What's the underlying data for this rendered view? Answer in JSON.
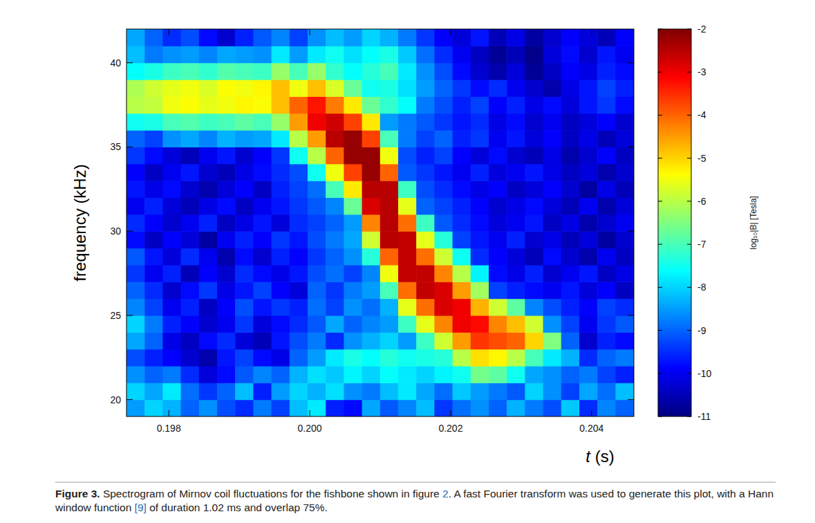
{
  "chart_data": {
    "type": "heatmap",
    "xlabel": "t (s)",
    "ylabel": "frequency (kHz)",
    "xlim": [
      0.1974,
      0.2046
    ],
    "ylim": [
      19,
      42
    ],
    "xticks": [
      0.198,
      {
        "value": 0.2,
        "label": "0.200"
      },
      0.202,
      0.204
    ],
    "yticks": [
      20,
      25,
      30,
      35,
      40
    ],
    "x_edges": [
      0.1974,
      0.197657,
      0.197914,
      0.198171,
      0.198428,
      0.198685,
      0.198942,
      0.199199,
      0.199456,
      0.199713,
      0.19997,
      0.200227,
      0.200484,
      0.200741,
      0.200998,
      0.201255,
      0.201512,
      0.201769,
      0.202026,
      0.202283,
      0.20254,
      0.202797,
      0.203054,
      0.203311,
      0.203568,
      0.203825,
      0.204082,
      0.204339,
      0.204596
    ],
    "y_edges": [
      19,
      20,
      21,
      22,
      23,
      24,
      25,
      26,
      27,
      28,
      29,
      30,
      31,
      32,
      33,
      34,
      35,
      36,
      37,
      38,
      39,
      40,
      41,
      42
    ],
    "z": [
      [
        -8.5,
        -8.0,
        -8.3,
        -9.0,
        -8.6,
        -9.2,
        -9.5,
        -8.8,
        -9.3,
        -8.2,
        -7.8,
        -9.6,
        -9.8,
        -8.4,
        -9.1,
        -8.7,
        -8.2,
        -9.4,
        -8.9,
        -8.6,
        -9.0,
        -8.3,
        -8.8,
        -9.2,
        -8.1,
        -9.5,
        -8.7,
        -9.0
      ],
      [
        -8.0,
        -8.4,
        -7.8,
        -8.9,
        -9.4,
        -9.0,
        -8.2,
        -9.6,
        -8.5,
        -8.0,
        -8.3,
        -7.9,
        -8.6,
        -8.8,
        -8.2,
        -7.8,
        -8.4,
        -8.9,
        -8.1,
        -8.5,
        -8.8,
        -9.1,
        -8.0,
        -8.6,
        -9.3,
        -8.4,
        -8.9,
        -8.2
      ],
      [
        -8.6,
        -9.0,
        -8.8,
        -9.5,
        -10.2,
        -9.8,
        -9.1,
        -8.7,
        -9.0,
        -8.3,
        -7.9,
        -8.1,
        -7.7,
        -8.0,
        -7.6,
        -7.8,
        -8.0,
        -7.7,
        -7.5,
        -6.6,
        -6.8,
        -7.5,
        -8.4,
        -8.6,
        -9.0,
        -8.8,
        -9.3,
        -9.6
      ],
      [
        -9.2,
        -9.6,
        -9.9,
        -10.3,
        -10.6,
        -9.7,
        -9.3,
        -9.8,
        -10.1,
        -9.0,
        -8.5,
        -7.8,
        -7.4,
        -7.6,
        -7.3,
        -7.5,
        -7.4,
        -7.3,
        -6.0,
        -5.1,
        -5.3,
        -6.0,
        -7.0,
        -7.8,
        -8.3,
        -9.5,
        -9.0,
        -8.8
      ],
      [
        -8.4,
        -9.0,
        -10.1,
        -10.4,
        -9.8,
        -9.5,
        -10.2,
        -10.5,
        -9.7,
        -9.2,
        -8.8,
        -9.5,
        -8.6,
        -8.3,
        -8.0,
        -8.5,
        -7.1,
        -5.8,
        -4.5,
        -3.6,
        -3.8,
        -4.0,
        -5.0,
        -6.5,
        -9.0,
        -10.3,
        -9.6,
        -9.8
      ],
      [
        -8.0,
        -8.8,
        -9.6,
        -9.9,
        -10.3,
        -10.0,
        -9.4,
        -10.2,
        -9.8,
        -9.5,
        -9.1,
        -8.4,
        -9.0,
        -8.7,
        -8.5,
        -7.1,
        -5.6,
        -4.3,
        -3.0,
        -3.2,
        -4.3,
        -4.8,
        -5.8,
        -8.6,
        -9.3,
        -10.0,
        -9.4,
        -9.1
      ],
      [
        -8.7,
        -9.3,
        -10.0,
        -9.6,
        -10.4,
        -9.9,
        -9.2,
        -9.7,
        -9.4,
        -9.6,
        -8.9,
        -9.3,
        -8.6,
        -8.9,
        -8.3,
        -5.6,
        -4.1,
        -2.8,
        -3.0,
        -4.7,
        -5.8,
        -6.8,
        -8.7,
        -9.2,
        -9.6,
        -9.9,
        -9.3,
        -9.5
      ],
      [
        -9.0,
        -9.5,
        -10.3,
        -9.8,
        -9.4,
        -10.1,
        -9.7,
        -9.3,
        -9.9,
        -10.2,
        -9.0,
        -9.4,
        -8.8,
        -8.5,
        -7.0,
        -4.1,
        -2.6,
        -2.8,
        -4.5,
        -6.2,
        -9.3,
        -9.6,
        -9.8,
        -10.0,
        -9.7,
        -10.2,
        -9.9,
        -10.4
      ],
      [
        -9.4,
        -10.0,
        -9.6,
        -10.5,
        -9.9,
        -10.3,
        -9.5,
        -9.8,
        -10.1,
        -9.7,
        -9.2,
        -8.9,
        -9.3,
        -8.7,
        -5.5,
        -2.6,
        -2.6,
        -4.3,
        -6.0,
        -7.7,
        -9.8,
        -10.1,
        -9.6,
        -10.3,
        -10.0,
        -9.7,
        -10.4,
        -10.1
      ],
      [
        -9.1,
        -9.7,
        -10.2,
        -9.5,
        -10.0,
        -10.6,
        -9.8,
        -10.3,
        -9.6,
        -9.9,
        -9.4,
        -9.0,
        -8.6,
        -7.3,
        -4.0,
        -2.6,
        -4.1,
        -5.8,
        -7.5,
        -9.5,
        -9.9,
        -10.2,
        -10.5,
        -9.8,
        -10.3,
        -10.6,
        -10.0,
        -10.4
      ],
      [
        -9.8,
        -10.4,
        -9.9,
        -10.2,
        -10.7,
        -10.0,
        -9.6,
        -9.9,
        -9.4,
        -9.7,
        -9.2,
        -8.8,
        -8.4,
        -5.8,
        -2.5,
        -2.6,
        -5.6,
        -7.3,
        -9.3,
        -9.7,
        -10.0,
        -9.6,
        -10.3,
        -10.1,
        -10.5,
        -10.2,
        -10.7,
        -10.3
      ],
      [
        -9.5,
        -9.9,
        -10.3,
        -10.0,
        -9.6,
        -10.4,
        -10.1,
        -9.7,
        -10.2,
        -9.5,
        -9.3,
        -9.0,
        -8.5,
        -4.3,
        -2.5,
        -4.1,
        -7.1,
        -9.1,
        -9.5,
        -9.8,
        -10.2,
        -10.0,
        -9.7,
        -10.4,
        -10.1,
        -10.6,
        -10.3,
        -10.0
      ],
      [
        -10.0,
        -9.6,
        -10.2,
        -10.5,
        -10.1,
        -9.8,
        -10.4,
        -10.0,
        -9.7,
        -9.4,
        -9.1,
        -8.7,
        -6.7,
        -2.8,
        -2.5,
        -5.6,
        -9.0,
        -9.3,
        -9.6,
        -9.9,
        -10.3,
        -10.1,
        -9.8,
        -10.2,
        -10.5,
        -10.0,
        -10.6,
        -10.2
      ],
      [
        -9.7,
        -10.1,
        -9.8,
        -10.3,
        -10.6,
        -10.2,
        -9.9,
        -10.4,
        -9.6,
        -9.3,
        -8.9,
        -7.0,
        -5.2,
        -2.5,
        -2.5,
        -7.1,
        -9.2,
        -9.5,
        -9.8,
        -10.1,
        -9.9,
        -10.4,
        -10.2,
        -9.9,
        -10.3,
        -10.7,
        -10.1,
        -10.5
      ],
      [
        -9.9,
        -10.4,
        -10.0,
        -9.7,
        -10.3,
        -10.5,
        -10.1,
        -9.8,
        -9.5,
        -9.2,
        -7.5,
        -5.5,
        -3.7,
        -2.2,
        -4.0,
        -9.1,
        -9.4,
        -9.7,
        -10.0,
        -9.6,
        -10.2,
        -10.0,
        -9.7,
        -10.1,
        -10.4,
        -10.2,
        -10.6,
        -10.3
      ],
      [
        -9.4,
        -9.8,
        -10.2,
        -10.5,
        -10.0,
        -9.7,
        -10.3,
        -9.9,
        -9.4,
        -7.5,
        -6.0,
        -4.0,
        -2.2,
        -2.2,
        -5.5,
        -9.2,
        -9.6,
        -9.3,
        -9.9,
        -10.2,
        -9.8,
        -10.3,
        -10.5,
        -10.1,
        -10.6,
        -10.3,
        -9.9,
        -10.4
      ],
      [
        -9.0,
        -9.3,
        -8.6,
        -8.4,
        -8.7,
        -8.3,
        -8.5,
        -8.4,
        -7.8,
        -6.0,
        -4.5,
        -2.5,
        -2.2,
        -3.7,
        -7.0,
        -8.8,
        -9.3,
        -9.0,
        -9.6,
        -9.4,
        -10.0,
        -9.7,
        -10.2,
        -9.9,
        -10.4,
        -10.1,
        -10.5,
        -10.2
      ],
      [
        -7.5,
        -7.4,
        -7.0,
        -6.9,
        -7.1,
        -7.0,
        -6.8,
        -7.0,
        -6.3,
        -4.5,
        -3.0,
        -2.7,
        -3.7,
        -5.2,
        -8.5,
        -8.8,
        -9.1,
        -9.4,
        -9.7,
        -9.5,
        -10.1,
        -9.8,
        -10.3,
        -10.0,
        -10.4,
        -10.2,
        -9.9,
        -10.3
      ],
      [
        -6.0,
        -5.9,
        -5.5,
        -5.4,
        -5.6,
        -5.5,
        -5.3,
        -5.4,
        -4.8,
        -4.0,
        -3.3,
        -4.2,
        -5.2,
        -6.7,
        -7.2,
        -7.6,
        -8.8,
        -9.2,
        -9.6,
        -9.3,
        -9.9,
        -9.6,
        -10.1,
        -9.8,
        -10.2,
        -9.7,
        -9.4,
        -9.8
      ],
      [
        -6.1,
        -5.8,
        -5.6,
        -5.5,
        -5.7,
        -5.4,
        -5.5,
        -5.3,
        -4.8,
        -5.5,
        -4.8,
        -5.7,
        -6.7,
        -7.5,
        -7.4,
        -7.9,
        -8.5,
        -9.0,
        -9.4,
        -9.8,
        -9.5,
        -10.0,
        -10.3,
        -10.6,
        -10.1,
        -9.7,
        -9.3,
        -9.6
      ],
      [
        -7.6,
        -7.4,
        -7.1,
        -7.0,
        -7.2,
        -6.9,
        -7.0,
        -7.1,
        -6.3,
        -7.0,
        -6.3,
        -7.2,
        -7.6,
        -7.3,
        -7.0,
        -7.8,
        -8.6,
        -9.2,
        -9.8,
        -10.3,
        -10.6,
        -10.2,
        -10.8,
        -10.4,
        -9.9,
        -10.1,
        -9.6,
        -9.8
      ],
      [
        -8.2,
        -8.8,
        -8.6,
        -8.5,
        -8.7,
        -8.4,
        -8.5,
        -8.6,
        -7.8,
        -8.5,
        -7.8,
        -7.5,
        -7.9,
        -7.6,
        -7.4,
        -8.1,
        -8.9,
        -9.5,
        -10.0,
        -10.4,
        -10.8,
        -10.5,
        -10.9,
        -10.2,
        -9.8,
        -10.3,
        -9.7,
        -10.0
      ],
      [
        -8.4,
        -9.0,
        -9.5,
        -9.2,
        -9.8,
        -10.3,
        -9.6,
        -9.1,
        -8.7,
        -9.3,
        -8.6,
        -8.2,
        -8.5,
        -8.0,
        -8.3,
        -8.8,
        -9.4,
        -9.9,
        -10.2,
        -9.7,
        -10.5,
        -10.1,
        -10.7,
        -10.3,
        -9.9,
        -10.2,
        -10.5,
        -9.9
      ]
    ],
    "colorbar": {
      "lim": [
        -11,
        -2
      ],
      "ticks": [
        -2,
        -3,
        -4,
        -5,
        -6,
        -7,
        -8,
        -9,
        -10,
        -11
      ],
      "label": "log₁₀|B| [Tesla]"
    }
  },
  "figure": {
    "label": "Figure 3.",
    "caption": [
      {
        "text": " Spectrogram of Mirnov coil fluctuations for the fishbone shown in figure "
      },
      {
        "text": "2",
        "link": true
      },
      {
        "text": ". A fast Fourier transform was used to generate this plot, with a Hann window function "
      },
      {
        "text": "[9]",
        "link": true
      },
      {
        "text": " of duration 1.02 ms and overlap 75%."
      }
    ]
  }
}
